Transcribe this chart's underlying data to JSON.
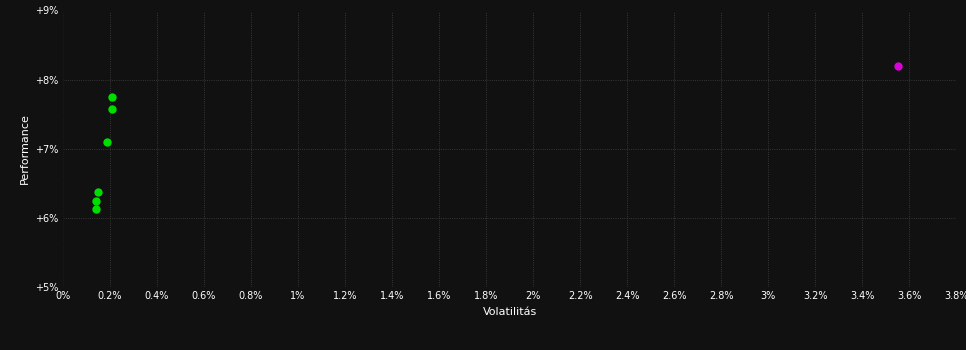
{
  "background_color": "#111111",
  "plot_bg_color": "#111111",
  "grid_color": "#444444",
  "text_color": "#ffffff",
  "xlabel": "Volatilitás",
  "ylabel": "Performance",
  "xlim": [
    0.0,
    0.038
  ],
  "ylim": [
    0.05,
    0.09
  ],
  "yticks": [
    0.05,
    0.06,
    0.07,
    0.08,
    0.09
  ],
  "ytick_labels": [
    "+5%",
    "+6%",
    "+7%",
    "+8%",
    "+9%"
  ],
  "xticks": [
    0.0,
    0.002,
    0.004,
    0.006,
    0.008,
    0.01,
    0.012,
    0.014,
    0.016,
    0.018,
    0.02,
    0.022,
    0.024,
    0.026,
    0.028,
    0.03,
    0.032,
    0.034,
    0.036,
    0.038
  ],
  "xtick_labels": [
    "0%",
    "0.2%",
    "0.4%",
    "0.6%",
    "0.8%",
    "1%",
    "1.2%",
    "1.4%",
    "1.6%",
    "1.8%",
    "2%",
    "2.2%",
    "2.4%",
    "2.6%",
    "2.8%",
    "3%",
    "3.2%",
    "3.4%",
    "3.6%",
    "3.8%"
  ],
  "green_points": [
    [
      0.0021,
      0.0775
    ],
    [
      0.0021,
      0.0757
    ],
    [
      0.0019,
      0.071
    ],
    [
      0.0015,
      0.0638
    ],
    [
      0.0014,
      0.0625
    ],
    [
      0.0014,
      0.0613
    ]
  ],
  "magenta_points": [
    [
      0.0355,
      0.082
    ]
  ],
  "green_color": "#00dd00",
  "magenta_color": "#dd00dd",
  "marker_size": 36
}
